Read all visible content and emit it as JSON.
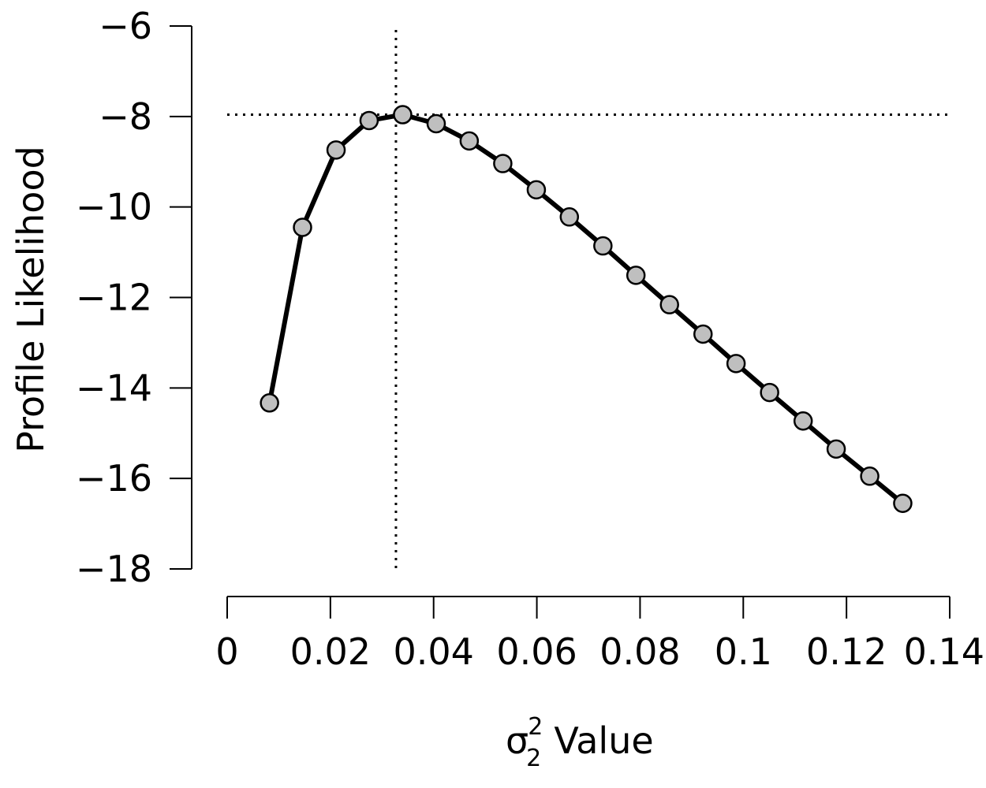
{
  "chart_data": {
    "type": "line",
    "xlabel": {
      "symbol": "σ",
      "superscript": "2",
      "subscript": "2",
      "text": "Value"
    },
    "ylabel": "Profile Likelihood",
    "xlim": [
      0,
      0.14
    ],
    "ylim": [
      -18,
      -6
    ],
    "xticks": [
      0,
      0.02,
      0.04,
      0.06,
      0.08,
      0.1,
      0.12,
      0.14
    ],
    "xtick_labels": [
      "0",
      "0.02",
      "0.04",
      "0.06",
      "0.08",
      "0.1",
      "0.12",
      "0.14"
    ],
    "yticks": [
      -6,
      -8,
      -10,
      -12,
      -14,
      -16,
      -18
    ],
    "ytick_labels": [
      "−6",
      "−8",
      "−10",
      "−12",
      "−14",
      "−16",
      "−18"
    ],
    "grid": false,
    "legend": "none",
    "series": [
      {
        "x": [
          0.0082,
          0.0146,
          0.0211,
          0.0275,
          0.034,
          0.0405,
          0.0469,
          0.0534,
          0.0599,
          0.0663,
          0.0728,
          0.0792,
          0.0857,
          0.0922,
          0.0986,
          0.1051,
          0.1116,
          0.118,
          0.1245,
          0.1309
        ],
        "y": [
          -14.33,
          -10.45,
          -8.74,
          -8.09,
          -7.96,
          -8.16,
          -8.54,
          -9.04,
          -9.62,
          -10.22,
          -10.86,
          -11.51,
          -12.16,
          -12.81,
          -13.46,
          -14.1,
          -14.73,
          -15.35,
          -15.95,
          -16.55
        ],
        "line_color": "#000000",
        "marker_fill": "#bfbfbf",
        "marker_edge": "#000000"
      }
    ],
    "reference_lines": [
      {
        "orientation": "vertical",
        "value": 0.0327,
        "style": "dotted"
      },
      {
        "orientation": "horizontal",
        "value": -7.96,
        "style": "dotted"
      }
    ]
  }
}
